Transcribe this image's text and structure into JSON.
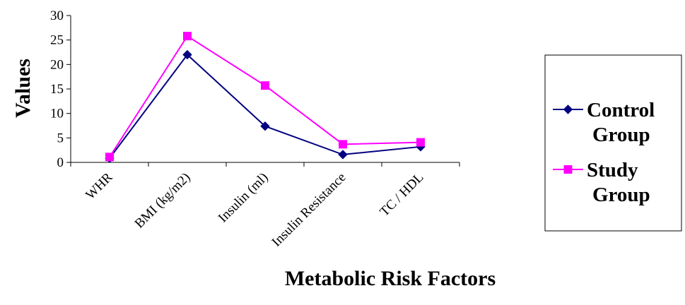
{
  "chart_data": {
    "type": "line",
    "categories": [
      "WHR",
      "BMI (kg/m2)",
      "Insulin (ml)",
      "Insulin Resistance",
      "TC / HDL"
    ],
    "series": [
      {
        "name_lines": [
          "Control",
          "Group"
        ],
        "values": [
          0.85,
          22,
          7.4,
          1.6,
          3.2
        ],
        "color": "#000080",
        "marker": "diamond"
      },
      {
        "name_lines": [
          "Study",
          "Group"
        ],
        "values": [
          1.1,
          25.8,
          15.7,
          3.7,
          4.1
        ],
        "color": "#ff00ff",
        "marker": "square"
      }
    ],
    "xlabel": "Metabolic Risk Factors",
    "ylabel": "Values",
    "ylim": [
      0,
      30
    ],
    "yticks": [
      0,
      5,
      10,
      15,
      20,
      25,
      30
    ],
    "grid": false,
    "legend_position": "right"
  }
}
